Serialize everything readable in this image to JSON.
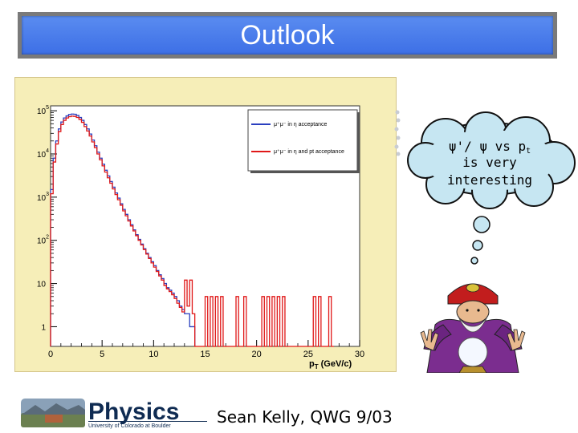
{
  "title": "Outlook",
  "footer": {
    "credit": "Sean Kelly, QWG 9/03"
  },
  "logo": {
    "word": "Physics",
    "subtext": "University of Colorado at Boulder"
  },
  "thought": {
    "line1": "ψ'/ ψ vs p",
    "line1_sub": "t",
    "line2": "is very",
    "line3": "interesting"
  },
  "chart_data": {
    "type": "line",
    "xlabel": "p",
    "xlabel_sub": "T",
    "xlabel_units": "(GeV/c)",
    "xlim": [
      0,
      30
    ],
    "ylim": [
      0.35,
      130000
    ],
    "yscale": "log",
    "xticks": [
      0,
      5,
      10,
      15,
      20,
      25,
      30
    ],
    "yticks": [
      {
        "value": 1,
        "base": "1",
        "exp": ""
      },
      {
        "value": 10,
        "base": "10",
        "exp": ""
      },
      {
        "value": 100,
        "base": "10",
        "exp": "2"
      },
      {
        "value": 1000,
        "base": "10",
        "exp": "3"
      },
      {
        "value": 10000,
        "base": "10",
        "exp": "4"
      },
      {
        "value": 100000,
        "base": "10",
        "exp": "5"
      }
    ],
    "legend_position": "top-right",
    "series": [
      {
        "name": "μ⁺μ⁻ in η acceptance",
        "color": "#2a3fbf",
        "x": [
          0,
          0.25,
          0.5,
          0.75,
          1,
          1.25,
          1.5,
          1.75,
          2,
          2.25,
          2.5,
          2.75,
          3,
          3.25,
          3.5,
          3.75,
          4,
          4.25,
          4.5,
          4.75,
          5,
          5.25,
          5.5,
          5.75,
          6,
          6.25,
          6.5,
          6.75,
          7,
          7.25,
          7.5,
          7.75,
          8,
          8.25,
          8.5,
          8.75,
          9,
          9.25,
          9.5,
          9.75,
          10,
          10.25,
          10.5,
          10.75,
          11,
          11.25,
          11.5,
          11.75,
          12,
          12.25,
          12.5,
          12.75,
          13,
          13.25,
          13.5,
          13.75
        ],
        "y": [
          1500,
          8000,
          20000,
          38000,
          55000,
          68000,
          76000,
          82000,
          84000,
          83000,
          78000,
          70000,
          60000,
          48000,
          38000,
          29000,
          21000,
          15500,
          11000,
          8000,
          5800,
          4200,
          3100,
          2300,
          1700,
          1250,
          950,
          700,
          520,
          400,
          300,
          230,
          175,
          135,
          105,
          82,
          64,
          50,
          40,
          32,
          26,
          20,
          16,
          13,
          10,
          8,
          7,
          6,
          5,
          4,
          3,
          2.5,
          2,
          2,
          1,
          1
        ]
      },
      {
        "name": "μ⁺μ⁻ in η and pt acceptance",
        "color": "#e01818",
        "x": [
          0,
          0.25,
          0.5,
          0.75,
          1,
          1.25,
          1.5,
          1.75,
          2,
          2.25,
          2.5,
          2.75,
          3,
          3.25,
          3.5,
          3.75,
          4,
          4.25,
          4.5,
          4.75,
          5,
          5.25,
          5.5,
          5.75,
          6,
          6.25,
          6.5,
          6.75,
          7,
          7.25,
          7.5,
          7.75,
          8,
          8.25,
          8.5,
          8.75,
          9,
          9.25,
          9.5,
          9.75,
          10,
          10.25,
          10.5,
          10.75,
          11,
          11.25,
          11.5,
          11.75,
          12,
          12.25,
          12.5,
          12.75,
          13,
          13.25,
          13.5,
          13.75,
          14,
          14.25,
          14.5,
          14.75,
          15,
          15.25,
          15.5,
          15.75,
          16,
          16.25,
          16.5,
          16.75,
          17,
          17.25,
          17.5,
          17.75,
          18,
          18.25,
          18.5,
          18.75,
          19,
          19.25,
          19.5,
          19.75,
          20,
          20.25,
          20.5,
          20.75,
          21,
          21.25,
          21.5,
          21.75,
          22,
          22.25,
          22.5,
          22.75,
          23,
          23.25,
          23.5,
          23.75,
          24,
          24.25,
          24.5,
          24.75,
          25,
          25.25,
          25.5,
          25.75,
          26,
          26.25,
          26.5,
          26.75,
          27,
          27.25
        ],
        "y": [
          1200,
          6500,
          17000,
          33000,
          48000,
          60000,
          68000,
          73000,
          75000,
          74000,
          70000,
          63000,
          54000,
          43000,
          34000,
          26000,
          19000,
          14000,
          10000,
          7300,
          5300,
          3800,
          2800,
          2100,
          1550,
          1150,
          870,
          650,
          480,
          370,
          280,
          215,
          165,
          128,
          100,
          78,
          61,
          48,
          38,
          30,
          24,
          19,
          15,
          12,
          9,
          7.5,
          6.5,
          5.5,
          4.5,
          3.5,
          2.8,
          2.2,
          12,
          3,
          12,
          2,
          0.35,
          0.35,
          0.35,
          0.35,
          5,
          0.35,
          5,
          0.35,
          5,
          0.35,
          5,
          0.35,
          0.35,
          0.35,
          0.35,
          0.35,
          5,
          0.35,
          0.35,
          5,
          0.35,
          0.35,
          0.35,
          0.35,
          0.35,
          0.35,
          5,
          0.35,
          5,
          0.35,
          5,
          0.35,
          5,
          0.35,
          5,
          0.35,
          0.35,
          0.35,
          0.35,
          0.35,
          0.35,
          0.35,
          0.35,
          0.35,
          0.35,
          0.35,
          5,
          0.35,
          5,
          0.35,
          0.35,
          0.35,
          5,
          0.35
        ]
      }
    ]
  }
}
